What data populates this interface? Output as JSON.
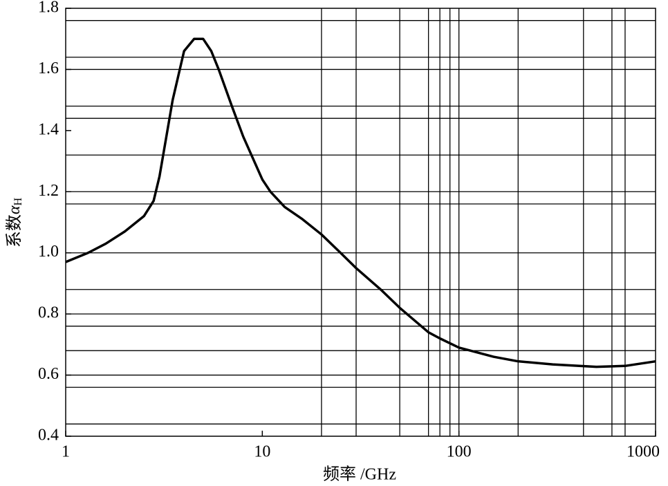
{
  "chart_data": {
    "type": "line",
    "xlabel": "频率 /GHz",
    "ylabel": {
      "text": "系数",
      "symbol": "α",
      "subscript": "H"
    },
    "x_scale": "log",
    "x": [
      1,
      1.3,
      1.6,
      2,
      2.5,
      2.8,
      3,
      3.5,
      4,
      4.5,
      5,
      5.5,
      6,
      7,
      8,
      10,
      11,
      13,
      16,
      20,
      25,
      30,
      40,
      50,
      70,
      80,
      100,
      150,
      200,
      300,
      500,
      700,
      1000
    ],
    "series": [
      {
        "color": "#000000",
        "values": [
          0.97,
          1.0,
          1.03,
          1.07,
          1.12,
          1.17,
          1.25,
          1.5,
          1.66,
          1.7,
          1.7,
          1.66,
          1.6,
          1.48,
          1.38,
          1.24,
          1.2,
          1.15,
          1.11,
          1.06,
          1.0,
          0.95,
          0.88,
          0.82,
          0.74,
          0.72,
          0.69,
          0.66,
          0.645,
          0.635,
          0.627,
          0.63,
          0.645
        ]
      }
    ],
    "xlim": [
      1,
      1000
    ],
    "ylim": [
      0.4,
      1.8
    ],
    "xticks": [
      1,
      10,
      100,
      1000
    ],
    "yticks": [
      0.4,
      0.6,
      0.8,
      {
        "value": 1,
        "label": "1.0"
      },
      1.2,
      1.4,
      1.6,
      1.8
    ],
    "xgrid": [
      20,
      30,
      50,
      70,
      80,
      90,
      100,
      200,
      430,
      600,
      700
    ],
    "ygrid": [
      0.44,
      0.56,
      0.6,
      0.68,
      0.76,
      0.8,
      0.88,
      1,
      1.16,
      1.2,
      1.32,
      1.44,
      1.48,
      1.6,
      1.64,
      1.76
    ]
  }
}
